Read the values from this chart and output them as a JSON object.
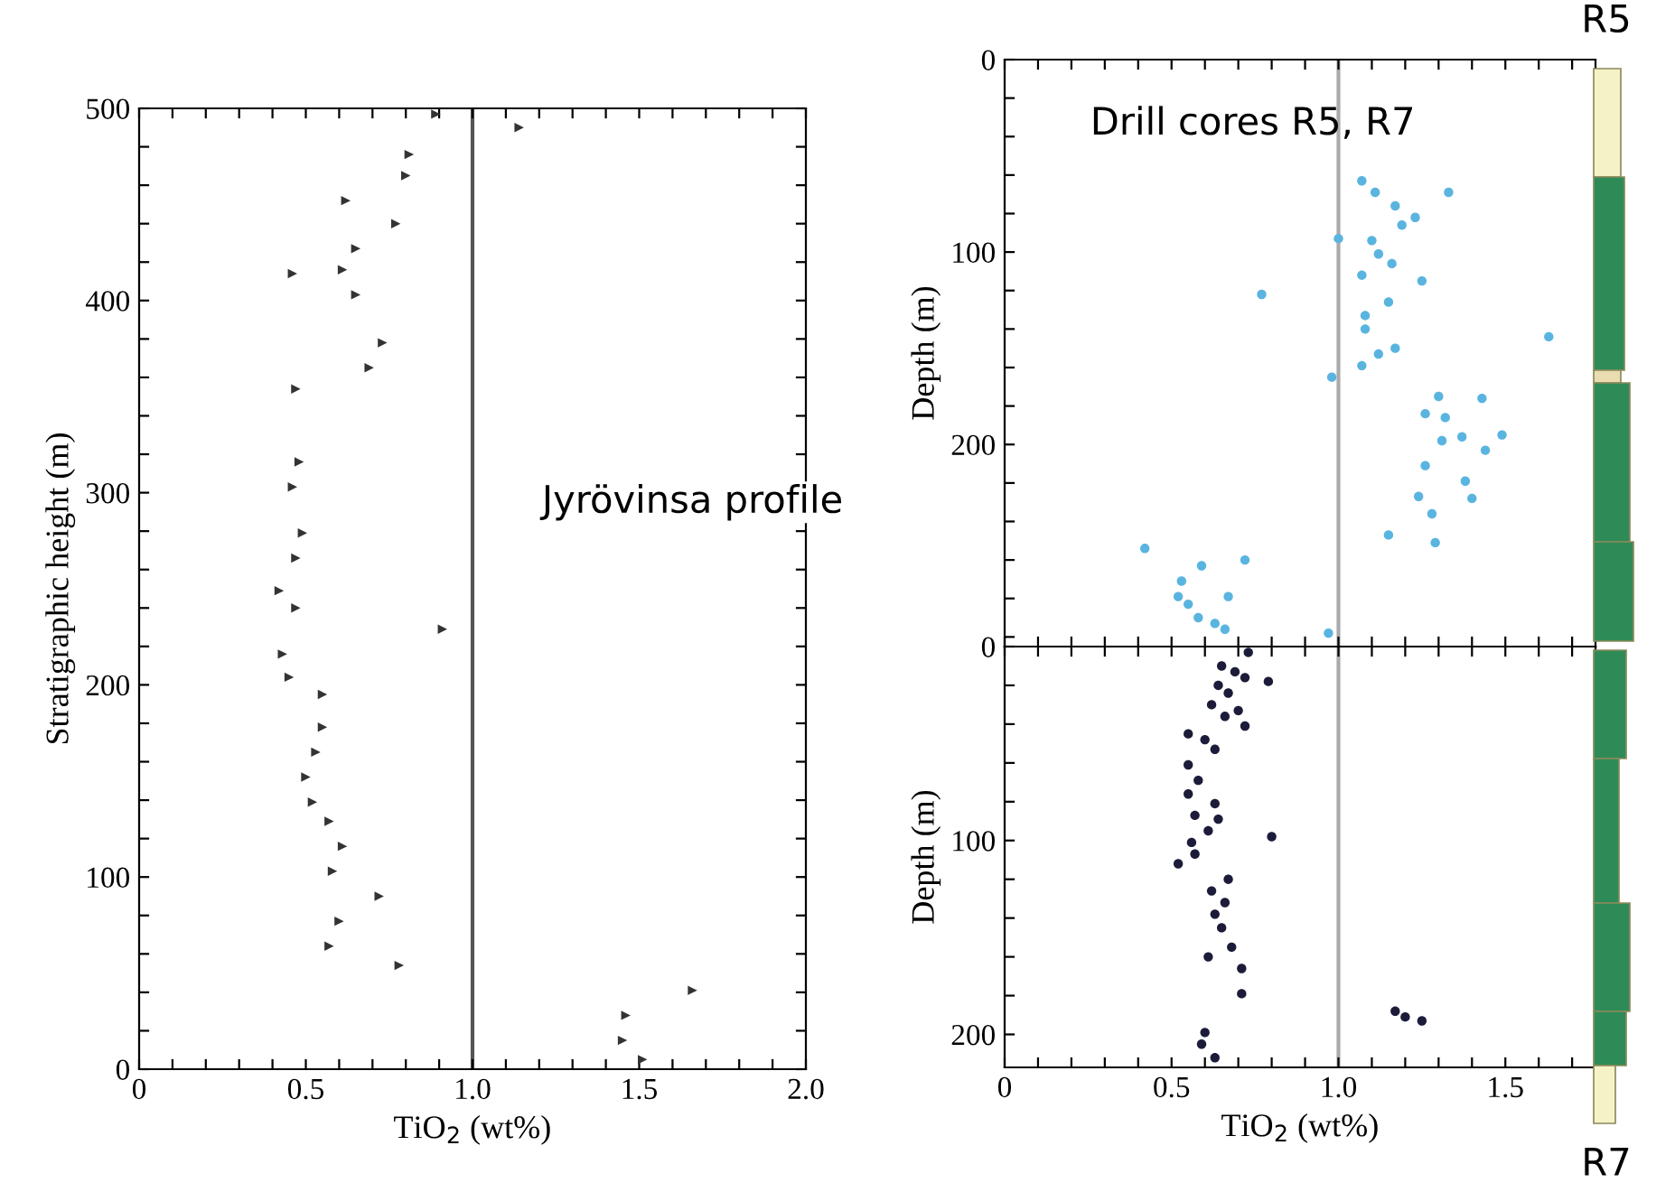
{
  "chart_data": [
    {
      "type": "scatter",
      "xlabel": "TiO$_{2}$ (wt%)",
      "ylabel": "Stratigraphic height (m)",
      "marker": "triangle",
      "grid": false,
      "legend": false,
      "annotations": [
        "Jyrövinsa profile"
      ],
      "xlim": [
        0,
        2
      ],
      "ylim": [
        0,
        500
      ],
      "xticks": [
        0,
        {
          "value": 0.1,
          "label": null
        },
        {
          "value": 0.2,
          "label": null
        },
        {
          "value": 0.3,
          "label": null
        },
        {
          "value": 0.4,
          "label": null
        },
        0.5,
        {
          "value": 0.6,
          "label": null
        },
        {
          "value": 0.7,
          "label": null
        },
        {
          "value": 0.8,
          "label": null
        },
        {
          "value": 0.9,
          "label": null
        },
        {
          "value": 1.0,
          "label": "1.0"
        },
        {
          "value": 1.1,
          "label": null
        },
        {
          "value": 1.2,
          "label": null
        },
        {
          "value": 1.3,
          "label": null
        },
        {
          "value": 1.4,
          "label": null
        },
        1.5,
        {
          "value": 1.6,
          "label": null
        },
        {
          "value": 1.7,
          "label": null
        },
        {
          "value": 1.8,
          "label": null
        },
        {
          "value": 1.9,
          "label": null
        },
        {
          "value": 2.0,
          "label": "2.0"
        }
      ],
      "yticks": [
        0,
        {
          "value": 20,
          "label": null
        },
        {
          "value": 40,
          "label": null
        },
        {
          "value": 60,
          "label": null
        },
        {
          "value": 80,
          "label": null
        },
        100,
        {
          "value": 120,
          "label": null
        },
        {
          "value": 140,
          "label": null
        },
        {
          "value": 160,
          "label": null
        },
        {
          "value": 180,
          "label": null
        },
        200,
        {
          "value": 220,
          "label": null
        },
        {
          "value": 240,
          "label": null
        },
        {
          "value": 260,
          "label": null
        },
        {
          "value": 280,
          "label": null
        },
        300,
        {
          "value": 320,
          "label": null
        },
        {
          "value": 340,
          "label": null
        },
        {
          "value": 360,
          "label": null
        },
        {
          "value": 380,
          "label": null
        },
        400,
        {
          "value": 420,
          "label": null
        },
        {
          "value": 440,
          "label": null
        },
        {
          "value": 460,
          "label": null
        },
        {
          "value": 480,
          "label": null
        },
        500
      ],
      "ref_lines": [
        {
          "axis": "x",
          "value": 1.0,
          "color": "#555555"
        }
      ],
      "series": [
        {
          "color": "#333333",
          "x": [
            0.89,
            1.14,
            0.81,
            0.8,
            0.62,
            0.77,
            0.65,
            0.61,
            0.46,
            0.65,
            0.73,
            0.69,
            0.47,
            0.48,
            0.46,
            0.49,
            0.47,
            0.42,
            0.47,
            0.91,
            0.43,
            0.45,
            0.55,
            0.55,
            0.53,
            0.5,
            0.52,
            0.57,
            0.61,
            0.58,
            0.72,
            0.6,
            0.57,
            0.78,
            1.66,
            1.46,
            1.45,
            1.51
          ],
          "values": [
            497,
            490,
            476,
            465,
            452,
            440,
            427,
            416,
            414,
            403,
            378,
            365,
            354,
            316,
            303,
            279,
            266,
            249,
            240,
            229,
            216,
            204,
            195,
            178,
            165,
            152,
            139,
            129,
            116,
            103,
            90,
            77,
            64,
            54,
            41,
            28,
            15,
            5
          ]
        }
      ]
    },
    {
      "type": "scatter",
      "ylabel": "Depth (m)",
      "marker": "circle",
      "grid": false,
      "legend": false,
      "tick_labels": "y",
      "annotations": [
        "Drill cores R5, R7",
        "R5"
      ],
      "xlim": [
        0,
        1.77
      ],
      "ylim": [
        305,
        0
      ],
      "xticks": [
        {
          "value": 0,
          "label": null
        },
        {
          "value": 0.1,
          "label": null
        },
        {
          "value": 0.2,
          "label": null
        },
        {
          "value": 0.3,
          "label": null
        },
        {
          "value": 0.4,
          "label": null
        },
        {
          "value": 0.5,
          "label": null
        },
        {
          "value": 0.6,
          "label": null
        },
        {
          "value": 0.7,
          "label": null
        },
        {
          "value": 0.8,
          "label": null
        },
        {
          "value": 0.9,
          "label": null
        },
        {
          "value": 1.0,
          "label": null
        },
        {
          "value": 1.1,
          "label": null
        },
        {
          "value": 1.2,
          "label": null
        },
        {
          "value": 1.3,
          "label": null
        },
        {
          "value": 1.4,
          "label": null
        },
        {
          "value": 1.5,
          "label": null
        },
        {
          "value": 1.6,
          "label": null
        },
        {
          "value": 1.7,
          "label": null
        }
      ],
      "yticks": [
        0,
        {
          "value": 20,
          "label": null
        },
        {
          "value": 40,
          "label": null
        },
        {
          "value": 60,
          "label": null
        },
        {
          "value": 80,
          "label": null
        },
        100,
        {
          "value": 120,
          "label": null
        },
        {
          "value": 140,
          "label": null
        },
        {
          "value": 160,
          "label": null
        },
        {
          "value": 180,
          "label": null
        },
        200,
        {
          "value": 220,
          "label": null
        },
        {
          "value": 240,
          "label": null
        },
        {
          "value": 260,
          "label": null
        },
        {
          "value": 280,
          "label": null
        },
        {
          "value": 300,
          "label": null
        }
      ],
      "ref_lines": [
        {
          "axis": "x",
          "value": 1.0,
          "color": "#aaaaaa"
        }
      ],
      "series": [
        {
          "color": "#5ab4e0",
          "x": [
            1.07,
            1.11,
            1.33,
            1.17,
            1.23,
            1.19,
            1.0,
            1.1,
            1.12,
            1.16,
            1.07,
            1.25,
            0.77,
            1.15,
            1.08,
            1.08,
            1.63,
            1.17,
            1.12,
            1.07,
            0.98,
            1.3,
            1.43,
            1.26,
            1.32,
            1.49,
            1.37,
            1.31,
            1.44,
            1.26,
            1.38,
            1.24,
            1.4,
            1.28,
            1.15,
            1.29,
            0.42,
            0.72,
            0.59,
            0.53,
            0.52,
            0.67,
            0.55,
            0.58,
            0.63,
            0.66,
            0.97
          ],
          "values": [
            63,
            69,
            69,
            76,
            82,
            86,
            93,
            94,
            101,
            106,
            112,
            115,
            122,
            126,
            133,
            140,
            144,
            150,
            153,
            159,
            165,
            175,
            176,
            184,
            186,
            195,
            196,
            198,
            203,
            211,
            219,
            227,
            228,
            236,
            247,
            251,
            254,
            260,
            263,
            271,
            279,
            279,
            283,
            290,
            293,
            296,
            298
          ]
        }
      ]
    },
    {
      "type": "scatter",
      "xlabel": "TiO$_{2}$ (wt%)",
      "ylabel": "Depth (m)",
      "marker": "circle",
      "grid": false,
      "legend": false,
      "annotations": [
        "R7"
      ],
      "xlim": [
        0,
        1.77
      ],
      "ylim": [
        217,
        0
      ],
      "xticks": [
        0,
        {
          "value": 0.1,
          "label": null
        },
        {
          "value": 0.2,
          "label": null
        },
        {
          "value": 0.3,
          "label": null
        },
        {
          "value": 0.4,
          "label": null
        },
        0.5,
        {
          "value": 0.6,
          "label": null
        },
        {
          "value": 0.7,
          "label": null
        },
        {
          "value": 0.8,
          "label": null
        },
        {
          "value": 0.9,
          "label": null
        },
        {
          "value": 1.0,
          "label": "1.0"
        },
        {
          "value": 1.1,
          "label": null
        },
        {
          "value": 1.2,
          "label": null
        },
        {
          "value": 1.3,
          "label": null
        },
        {
          "value": 1.4,
          "label": null
        },
        1.5,
        {
          "value": 1.6,
          "label": null
        },
        {
          "value": 1.7,
          "label": null
        }
      ],
      "yticks": [
        0,
        {
          "value": 20,
          "label": null
        },
        {
          "value": 40,
          "label": null
        },
        {
          "value": 60,
          "label": null
        },
        {
          "value": 80,
          "label": null
        },
        100,
        {
          "value": 120,
          "label": null
        },
        {
          "value": 140,
          "label": null
        },
        {
          "value": 160,
          "label": null
        },
        {
          "value": 180,
          "label": null
        },
        200
      ],
      "ref_lines": [
        {
          "axis": "x",
          "value": 1.0,
          "color": "#aaaaaa"
        }
      ],
      "series": [
        {
          "color": "#1c1c3a",
          "x": [
            0.73,
            0.65,
            0.69,
            0.72,
            0.79,
            0.64,
            0.67,
            0.62,
            0.7,
            0.66,
            0.72,
            0.55,
            0.6,
            0.63,
            0.55,
            0.58,
            0.55,
            0.63,
            0.57,
            0.64,
            0.61,
            0.8,
            0.56,
            0.57,
            0.52,
            0.67,
            0.62,
            0.66,
            0.63,
            0.65,
            0.68,
            0.61,
            0.71,
            0.71,
            1.17,
            1.2,
            1.25,
            0.6,
            0.59,
            0.63
          ],
          "values": [
            3,
            10,
            13,
            16,
            18,
            20,
            24,
            30,
            33,
            36,
            41,
            45,
            48,
            53,
            61,
            69,
            76,
            81,
            87,
            89,
            95,
            98,
            101,
            107,
            112,
            120,
            126,
            132,
            138,
            145,
            155,
            160,
            166,
            179,
            188,
            191,
            193,
            199,
            205,
            212
          ]
        }
      ]
    }
  ]
}
